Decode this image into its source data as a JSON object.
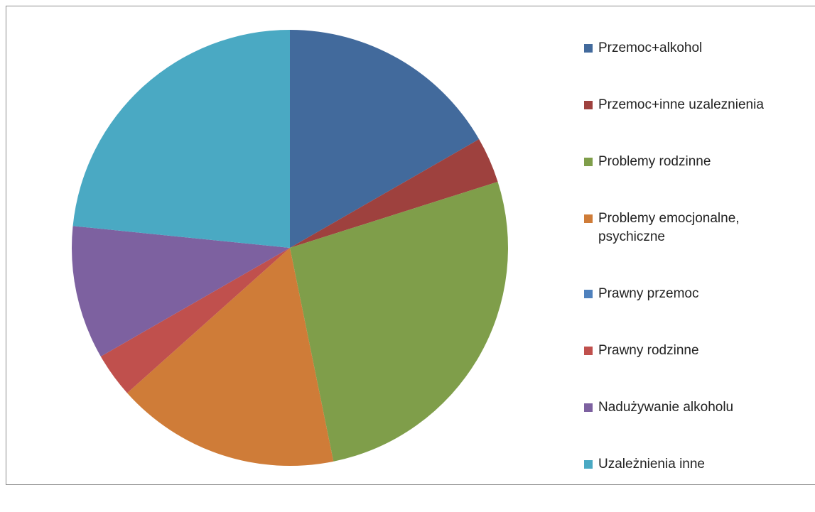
{
  "chart_data": {
    "type": "pie",
    "categories": [
      "Przemoc+alkohol",
      "Przemoc+inne uzaleznienia",
      "Problemy rodzinne",
      "Problemy emocjonalne, psychiczne",
      "Prawny przemoc",
      "Prawny rodzinne",
      "Nadużywanie alkoholu",
      "Uzależnienia inne"
    ],
    "values": [
      16.7,
      3.4,
      26.7,
      16.6,
      0,
      3.3,
      9.9,
      23.4
    ],
    "colors": [
      "#426a9c",
      "#9e413e",
      "#7f9e4a",
      "#cf7c38",
      "#4f81bd",
      "#c0504d",
      "#7d61a0",
      "#4aa9c3"
    ],
    "legend": "right"
  }
}
